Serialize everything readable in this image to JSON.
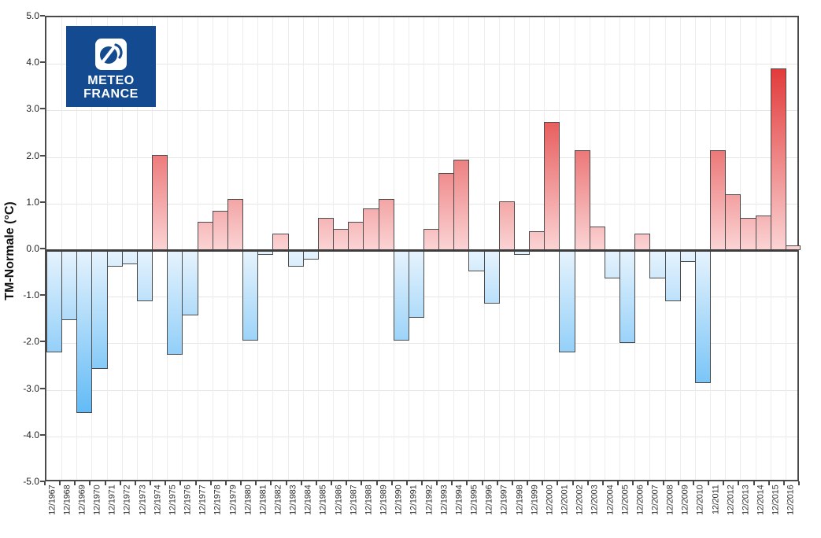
{
  "logo": {
    "line1": "METEO",
    "line2": "FRANCE",
    "bg_color": "#144a90",
    "icon": "meteo-france-cyclone-icon"
  },
  "chart_data": {
    "type": "bar",
    "title": "",
    "xlabel": "",
    "ylabel": "TM-Normale (°C)",
    "ylim": [
      -5.0,
      5.0
    ],
    "ytick_step": 1.0,
    "ytick_labels": [
      "5.0",
      "4.0",
      "3.0",
      "2.0",
      "1.0",
      "0.0",
      "-1.0",
      "-2.0",
      "-3.0",
      "-4.0",
      "-5.0"
    ],
    "grid": true,
    "legend": "none",
    "categories": [
      "12/1967",
      "12/1968",
      "12/1969",
      "12/1970",
      "12/1971",
      "12/1972",
      "12/1973",
      "12/1974",
      "12/1975",
      "12/1976",
      "12/1977",
      "12/1978",
      "12/1979",
      "12/1980",
      "12/1981",
      "12/1982",
      "12/1983",
      "12/1984",
      "12/1985",
      "12/1986",
      "12/1987",
      "12/1988",
      "12/1989",
      "12/1990",
      "12/1991",
      "12/1992",
      "12/1993",
      "12/1994",
      "12/1995",
      "12/1996",
      "12/1997",
      "12/1998",
      "12/1999",
      "12/2000",
      "12/2001",
      "12/2002",
      "12/2003",
      "12/2004",
      "12/2005",
      "12/2006",
      "12/2007",
      "12/2008",
      "12/2009",
      "12/2010",
      "12/2011",
      "12/2012",
      "12/2013",
      "12/2014",
      "12/2015",
      "12/2016"
    ],
    "values": [
      -2.2,
      -1.5,
      -3.5,
      -2.55,
      -0.35,
      -0.3,
      -1.1,
      2.05,
      -2.25,
      -1.4,
      0.6,
      0.85,
      1.1,
      -1.95,
      -0.1,
      0.35,
      -0.35,
      -0.2,
      0.7,
      0.45,
      0.6,
      0.9,
      1.1,
      -1.95,
      -1.45,
      0.45,
      1.65,
      1.95,
      -0.45,
      -1.15,
      1.05,
      -0.1,
      0.4,
      2.75,
      -2.2,
      2.15,
      0.5,
      -0.6,
      -2.0,
      0.35,
      -0.6,
      -1.1,
      -0.25,
      -2.85,
      2.15,
      1.2,
      0.7,
      0.75,
      3.9,
      0.1
    ],
    "colors": {
      "positive_far": "#e23b3b",
      "positive_near": "#fbd3d4",
      "negative_far": "#5fb9f6",
      "negative_near": "#e6f3fd",
      "bar_border": "#4c4c4c",
      "zero_line": "#3d3d3d",
      "frame": "#4a4a4a",
      "gridline": "#e6e6e6"
    }
  }
}
